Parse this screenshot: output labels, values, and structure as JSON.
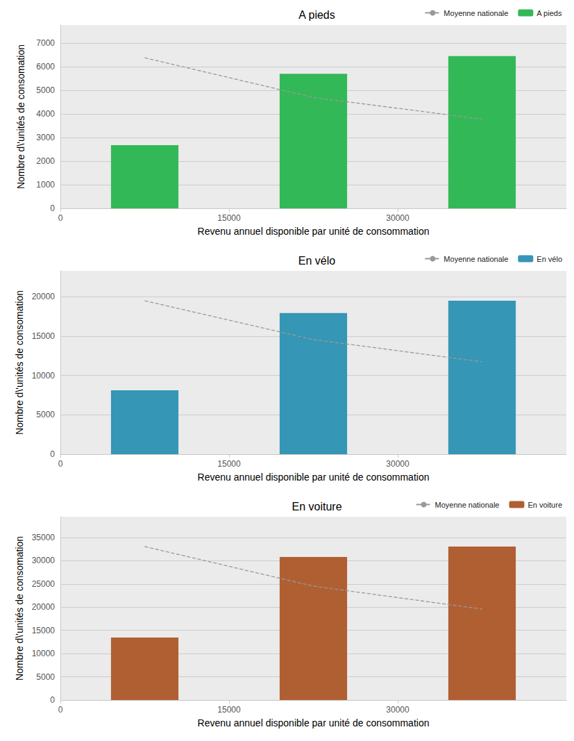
{
  "chart_data": [
    {
      "type": "bar",
      "title": "A pieds",
      "x_label": "Revenu annuel disponible par unité de consommation",
      "y_label": "Nombre d\\'unités de consomation",
      "x": [
        7500,
        22500,
        37500
      ],
      "xlim": [
        0,
        45000
      ],
      "xticks": [
        0,
        15000,
        30000
      ],
      "ylim": [
        0,
        7770
      ],
      "yticks": [
        0,
        1000,
        2000,
        3000,
        4000,
        5000,
        6000,
        7000
      ],
      "grid": true,
      "legend": "upper right",
      "series": [
        {
          "name": "Moyenne nationale",
          "type": "line",
          "line_style": "dashed",
          "color": "#999999",
          "values": [
            6380,
            4700,
            3780
          ]
        },
        {
          "name": "A pieds",
          "type": "bar",
          "color": "#33b857",
          "values": [
            2680,
            5700,
            6450
          ]
        }
      ]
    },
    {
      "type": "bar",
      "title": "En vélo",
      "x_label": "Revenu annuel disponible par unité de consommation",
      "y_label": "Nombre d\\'unités de consomation",
      "x": [
        7500,
        22500,
        37500
      ],
      "xlim": [
        0,
        45000
      ],
      "xticks": [
        0,
        15000,
        30000
      ],
      "ylim": [
        0,
        23260
      ],
      "yticks": [
        0,
        5000,
        10000,
        15000,
        20000
      ],
      "grid": true,
      "legend": "upper right",
      "series": [
        {
          "name": "Moyenne nationale",
          "type": "line",
          "line_style": "dashed",
          "color": "#999999",
          "values": [
            19470,
            14540,
            11720
          ]
        },
        {
          "name": "En vélo",
          "type": "bar",
          "color": "#3596b5",
          "values": [
            8100,
            17900,
            19470
          ]
        }
      ]
    },
    {
      "type": "bar",
      "title": "En voiture",
      "x_label": "Revenu annuel disponible par unité de consommation",
      "y_label": "Nombre d\\'unités de consomation",
      "x": [
        7500,
        22500,
        37500
      ],
      "xlim": [
        0,
        45000
      ],
      "xticks": [
        0,
        15000,
        30000
      ],
      "ylim": [
        0,
        39480
      ],
      "yticks": [
        0,
        5000,
        10000,
        15000,
        20000,
        25000,
        30000,
        35000
      ],
      "grid": true,
      "legend": "upper right",
      "series": [
        {
          "name": "Moyenne nationale",
          "type": "line",
          "line_style": "dashed",
          "color": "#999999",
          "values": [
            33050,
            24530,
            19590
          ]
        },
        {
          "name": "En voiture",
          "type": "bar",
          "color": "#b05f33",
          "values": [
            13460,
            30810,
            33050
          ]
        }
      ]
    }
  ]
}
